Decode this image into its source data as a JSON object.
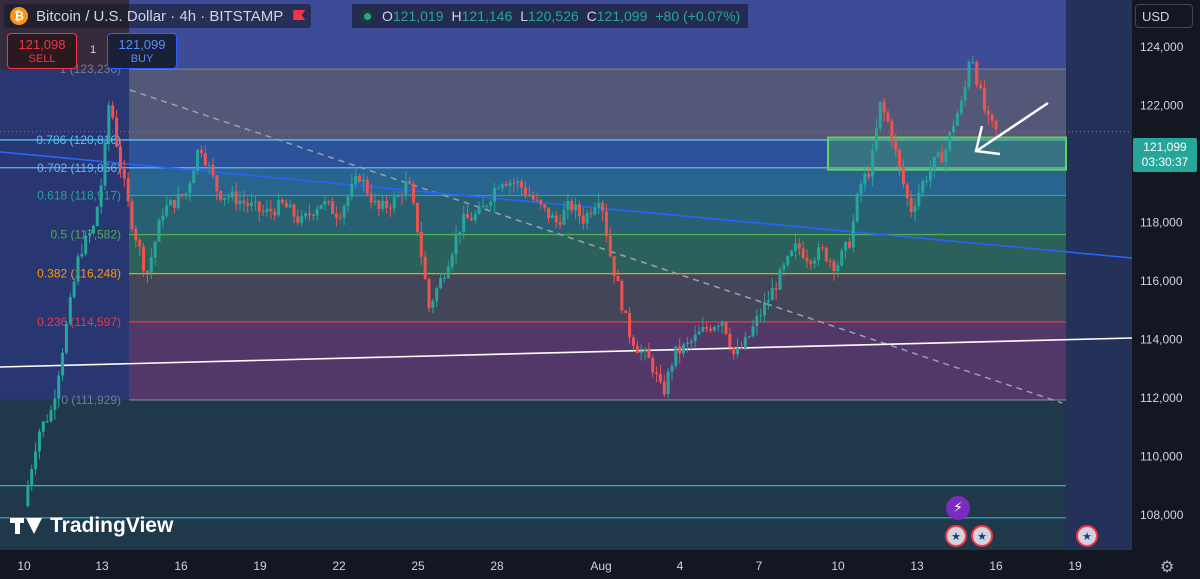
{
  "header": {
    "logo_glyph": "₿",
    "symbol_title": "Bitcoin / U.S. Dollar · 4h · BITSTAMP",
    "ohlc": {
      "o_label": "O",
      "o": "121,019",
      "h_label": "H",
      "h": "121,146",
      "l_label": "L",
      "l": "120,526",
      "c_label": "C",
      "c": "121,099",
      "change": "+80 (+0.07%)"
    }
  },
  "trade": {
    "sell_price": "121,098",
    "sell_label": "SELL",
    "qty": "1",
    "buy_price": "121,099",
    "buy_label": "BUY"
  },
  "currency": "USD",
  "price_tag": {
    "price": "121,099",
    "countdown": "03:30:37"
  },
  "watermark": "TradingView",
  "colors": {
    "background": "#131722",
    "up": "#26a69a",
    "down": "#ef5350",
    "fib_zone_blue": "#3b4f9e",
    "fib_zone_purple": "#5a3a7a"
  },
  "chart_data": {
    "type": "candlestick",
    "symbol": "Bitcoin / U.S. Dollar",
    "interval": "4h",
    "exchange": "BITSTAMP",
    "y_ticks": [
      108000,
      110000,
      112000,
      114000,
      116000,
      118000,
      120000,
      122000,
      124000
    ],
    "y_tick_labels": [
      "108,000",
      "110,000",
      "112,000",
      "114,000",
      "116,000",
      "118,000",
      "120,000",
      "122,000",
      "124,000"
    ],
    "ylim": [
      106800,
      125600
    ],
    "x_tick_labels": [
      "10",
      "13",
      "16",
      "19",
      "22",
      "25",
      "28",
      "Aug",
      "4",
      "7",
      "10",
      "13",
      "16",
      "19"
    ],
    "current_price": 121099,
    "fib_levels": [
      {
        "ratio": "1",
        "value": 123236,
        "label": "1 (123,236)",
        "color": "#787b86"
      },
      {
        "ratio": "0.786",
        "value": 120816,
        "label": "0.786 (120,816)",
        "color": "#4fc3f7"
      },
      {
        "ratio": "0.702",
        "value": 119866,
        "label": "0.702 (119,866)",
        "color": "#64b5f6"
      },
      {
        "ratio": "0.618",
        "value": 118917,
        "label": "0.618 (118,917)",
        "color": "#26a69a"
      },
      {
        "ratio": "0.5",
        "value": 117582,
        "label": "0.5 (117,582)",
        "color": "#4caf50"
      },
      {
        "ratio": "0.382",
        "value": 116248,
        "label": "0.382 (116,248)",
        "color": "#ff9800"
      },
      {
        "ratio": "0.236",
        "value": 114597,
        "label": "0.236 (114,597)",
        "color": "#f23645"
      },
      {
        "ratio": "0",
        "value": 111929,
        "label": "0 (111,929)",
        "color": "#787b86"
      }
    ],
    "horizontal_lines": [
      109000,
      107900
    ],
    "highlight_zone": {
      "from_label": "10",
      "to_label": "19",
      "low": 119800,
      "high": 120900
    },
    "price_path": [
      [
        0,
        108300
      ],
      [
        0.6,
        110800
      ],
      [
        1.2,
        111600
      ],
      [
        1.8,
        114300
      ],
      [
        2.4,
        117000
      ],
      [
        3,
        117800
      ],
      [
        3.4,
        119600
      ],
      [
        3.7,
        122300
      ],
      [
        4.1,
        120200
      ],
      [
        4.6,
        118200
      ],
      [
        5.3,
        116200
      ],
      [
        6,
        118400
      ],
      [
        7,
        119000
      ],
      [
        7.6,
        120700
      ],
      [
        8.4,
        119000
      ],
      [
        9.2,
        118800
      ],
      [
        10.4,
        118300
      ],
      [
        11.2,
        118600
      ],
      [
        12,
        118000
      ],
      [
        12.8,
        118700
      ],
      [
        13.6,
        118300
      ],
      [
        14.5,
        119600
      ],
      [
        15.3,
        118400
      ],
      [
        16.1,
        118800
      ],
      [
        16.6,
        119400
      ],
      [
        17,
        117800
      ],
      [
        17.5,
        115100
      ],
      [
        18.1,
        116200
      ],
      [
        18.9,
        118000
      ],
      [
        19.7,
        118300
      ],
      [
        20.6,
        119500
      ],
      [
        21.4,
        119300
      ],
      [
        22.2,
        118600
      ],
      [
        23,
        118000
      ],
      [
        23.6,
        118600
      ],
      [
        24.2,
        118100
      ],
      [
        24.9,
        119000
      ],
      [
        25.3,
        117000
      ],
      [
        25.7,
        115700
      ],
      [
        26.1,
        114300
      ],
      [
        26.6,
        113600
      ],
      [
        27.1,
        113200
      ],
      [
        27.6,
        112100
      ],
      [
        28.1,
        113500
      ],
      [
        28.7,
        113800
      ],
      [
        29.2,
        114200
      ],
      [
        29.7,
        114500
      ],
      [
        30.2,
        114700
      ],
      [
        30.7,
        113400
      ],
      [
        31.2,
        113900
      ],
      [
        31.7,
        114700
      ],
      [
        32.3,
        115600
      ],
      [
        32.9,
        116500
      ],
      [
        33.4,
        117200
      ],
      [
        33.9,
        116800
      ],
      [
        34.5,
        117000
      ],
      [
        35.1,
        116500
      ],
      [
        35.7,
        117400
      ],
      [
        36.1,
        119200
      ],
      [
        36.6,
        119900
      ],
      [
        37,
        122000
      ],
      [
        37.4,
        121300
      ],
      [
        37.8,
        119900
      ],
      [
        38.3,
        118400
      ],
      [
        38.8,
        119300
      ],
      [
        39.3,
        120000
      ],
      [
        39.8,
        120400
      ],
      [
        40.2,
        121500
      ],
      [
        40.6,
        122200
      ],
      [
        40.9,
        124000
      ],
      [
        41.2,
        122800
      ],
      [
        41.6,
        121500
      ],
      [
        42,
        121099
      ]
    ]
  }
}
